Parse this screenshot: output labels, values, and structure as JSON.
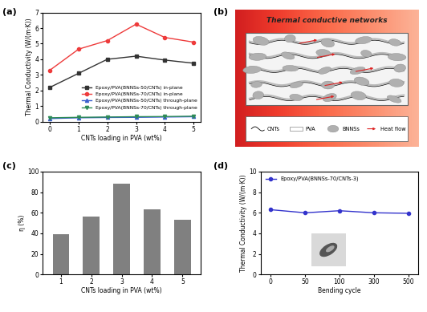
{
  "chart_data": [
    {
      "type": "line",
      "panel_label": "(a)",
      "x_label": "CNTs loading in PVA (wt%)",
      "y_label": "Thermal Conductivity (W/(m·K))",
      "x": [
        0,
        1,
        2,
        3,
        4,
        5
      ],
      "xlim": [
        -0.25,
        5.25
      ],
      "xticks": [
        0,
        1,
        2,
        3,
        4,
        5
      ],
      "ylim": [
        0,
        7
      ],
      "yticks": [
        0,
        1,
        2,
        3,
        4,
        5,
        6,
        7
      ],
      "legend": "lower right",
      "series": [
        {
          "name": "Epoxy/PVA(BNNSs-50/CNTs) in-plane",
          "color": "#333333",
          "marker": "square",
          "line_style": "solid",
          "values": [
            2.2,
            3.1,
            4.0,
            4.2,
            3.95,
            3.75
          ]
        },
        {
          "name": "Epoxy/PVA(BNNSs-70/CNTs) in-plane",
          "color": "#ee3b3b",
          "marker": "circle",
          "line_style": "solid",
          "values": [
            3.3,
            4.65,
            5.2,
            6.25,
            5.4,
            5.1
          ]
        },
        {
          "name": "Epoxy/PVA(BNNSs-50/CNTs) through-plane",
          "color": "#3a5fcd",
          "marker": "triangle_up",
          "line_style": "solid",
          "values": [
            0.2,
            0.25,
            0.27,
            0.28,
            0.3,
            0.32
          ]
        },
        {
          "name": "Epoxy/PVA(BNNSs-70/CNTs) through-plane",
          "color": "#2e8b57",
          "marker": "triangle_down",
          "line_style": "solid",
          "values": [
            0.25,
            0.28,
            0.3,
            0.32,
            0.33,
            0.35
          ]
        }
      ]
    },
    {
      "type": "diagram",
      "panel_label": "(b)",
      "title": "Thermal conductive networks",
      "items": [
        "CNTs",
        "PVA",
        "BNNSs",
        "Heat flow"
      ]
    },
    {
      "type": "bar",
      "panel_label": "(c)",
      "x_label": "CNTs loading in PVA (wt%)",
      "y_label": "η (%)",
      "x": [
        1,
        2,
        3,
        4,
        5
      ],
      "values": [
        39,
        56,
        88,
        63,
        53
      ],
      "color": "#808080",
      "xlim": [
        0.4,
        5.6
      ],
      "xticks": [
        1,
        2,
        3,
        4,
        5
      ],
      "ylim": [
        0,
        100
      ],
      "yticks": [
        0,
        20,
        40,
        60,
        80,
        100
      ]
    },
    {
      "type": "line",
      "panel_label": "(d)",
      "x_label": "Bending cycle",
      "y_label": "Thermal Conductivity (W/(m·K))",
      "categories": [
        "0",
        "50",
        "100",
        "300",
        "500"
      ],
      "ylim": [
        0,
        10
      ],
      "yticks": [
        0,
        2,
        4,
        6,
        8,
        10
      ],
      "legend": "upper left",
      "series": [
        {
          "name": "Epoxy/PVA(BNNSs-70/CNTs-3)",
          "color": "#3333cc",
          "marker": "circle",
          "line_style": "solid",
          "values": [
            6.3,
            6.0,
            6.2,
            6.0,
            5.95
          ]
        }
      ]
    }
  ]
}
